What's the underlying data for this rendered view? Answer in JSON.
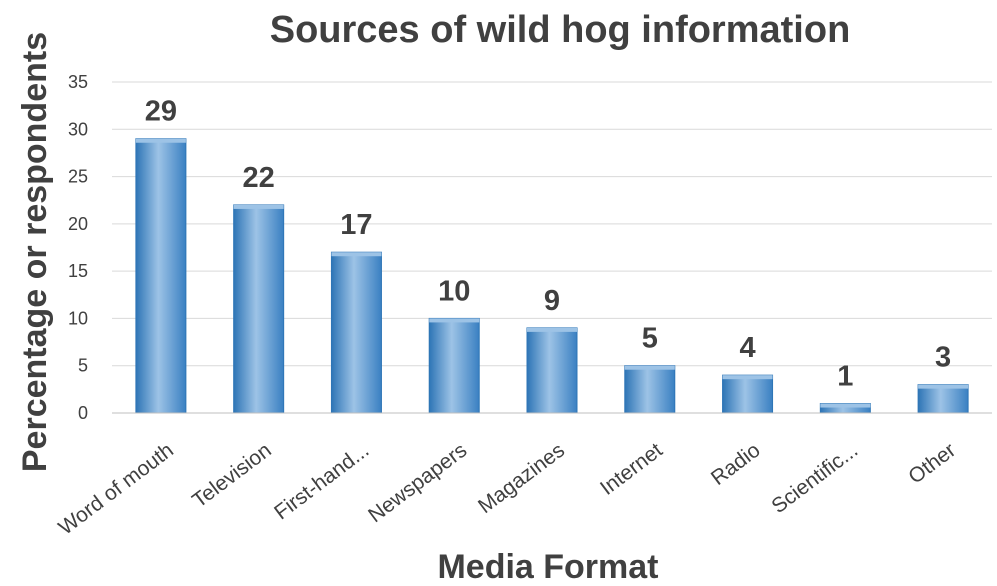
{
  "chart_data": {
    "type": "bar",
    "title": "Sources of wild hog information",
    "xlabel": "Media Format",
    "ylabel": "Percentage or respondents",
    "categories": [
      "Word of mouth",
      "Television",
      "First-hand...",
      "Newspapers",
      "Magazines",
      "Internet",
      "Radio",
      "Scientific...",
      "Other"
    ],
    "values": [
      29,
      22,
      17,
      10,
      9,
      5,
      4,
      1,
      3
    ],
    "data_labels": [
      "29",
      "22",
      "17",
      "10",
      "9",
      "5",
      "4",
      "1",
      "3"
    ],
    "ylim": [
      0,
      35
    ],
    "yticks": [
      0,
      5,
      10,
      15,
      20,
      25,
      30,
      35
    ],
    "ytick_labels": [
      "0",
      "5",
      "10",
      "15",
      "20",
      "25",
      "30",
      "35"
    ],
    "grid": true,
    "legend": "none",
    "colors": {
      "bar": "#5B9BD5",
      "bar_dark": "#2E75B6",
      "bar_light": "#9DC3E6",
      "text": "#404040",
      "grid": "#D9D9D9"
    }
  }
}
